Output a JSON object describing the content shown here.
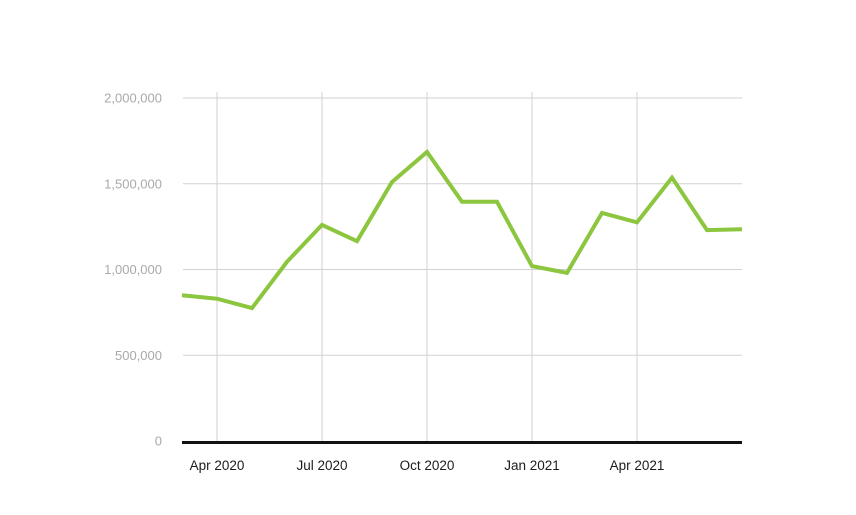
{
  "chart_data": {
    "type": "line",
    "title": "",
    "x": [
      "Mar 2020",
      "Apr 2020",
      "May 2020",
      "Jun 2020",
      "Jul 2020",
      "Aug 2020",
      "Sep 2020",
      "Oct 2020",
      "Nov 2020",
      "Dec 2020",
      "Jan 2021",
      "Feb 2021",
      "Mar 2021",
      "Apr 2021",
      "May 2021",
      "Jun 2021",
      "Jul 2021"
    ],
    "series": [
      {
        "name": "value",
        "values": [
          850000,
          830000,
          775000,
          1045000,
          1260000,
          1165000,
          1510000,
          1685000,
          1395000,
          1395000,
          1020000,
          980000,
          1330000,
          1275000,
          1535000,
          1230000,
          1235000
        ]
      }
    ],
    "x_tick_labels": [
      "Apr 2020",
      "Jul 2020",
      "Oct 2020",
      "Jan 2021",
      "Apr 2021"
    ],
    "x_tick_indices": [
      1,
      4,
      7,
      10,
      13
    ],
    "y_ticks": [
      0,
      500000,
      1000000,
      1500000,
      2000000
    ],
    "y_tick_labels": [
      "0",
      "500,000",
      "1,000,000",
      "1,500,000",
      "2,000,000"
    ],
    "ylim": [
      0,
      2000000
    ],
    "grid": true,
    "legend": false,
    "colors": {
      "line": "#8cc63f",
      "grid": "#d2d2d2",
      "axis": "#111111",
      "y_label": "#a9a9a9",
      "x_label": "#1c1c1c",
      "background": "#ffffff"
    }
  }
}
